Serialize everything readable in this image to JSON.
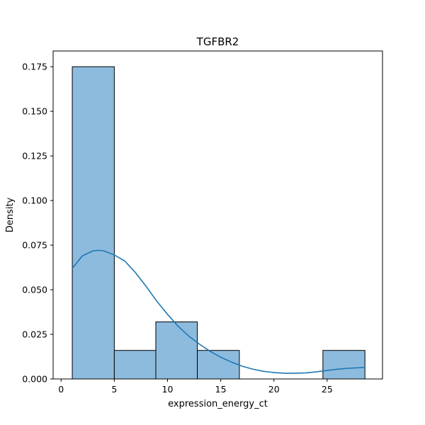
{
  "chart_data": {
    "type": "bar",
    "title": "TGFBR2",
    "xlabel": "expression_energy_ct",
    "ylabel": "Density",
    "xlim": [
      -0.75,
      30.2
    ],
    "ylim": [
      0,
      0.1838
    ],
    "xticks": [
      "0",
      "5",
      "10",
      "15",
      "20",
      "25"
    ],
    "xtick_values": [
      0,
      5,
      10,
      15,
      20,
      25
    ],
    "yticks": [
      "0.000",
      "0.025",
      "0.050",
      "0.075",
      "0.100",
      "0.125",
      "0.150",
      "0.175"
    ],
    "ytick_values": [
      0,
      0.025,
      0.05,
      0.075,
      0.1,
      0.125,
      0.15,
      0.175
    ],
    "grid": false,
    "legend": "none",
    "bins": [
      {
        "x0": 1.05,
        "x1": 5.0,
        "density": 0.175
      },
      {
        "x0": 5.0,
        "x1": 8.9,
        "density": 0.016
      },
      {
        "x0": 8.9,
        "x1": 12.8,
        "density": 0.032
      },
      {
        "x0": 12.8,
        "x1": 16.75,
        "density": 0.016
      },
      {
        "x0": 24.6,
        "x1": 28.55,
        "density": 0.016
      }
    ],
    "kde": {
      "x": [
        1.05,
        2,
        3,
        3.5,
        4,
        5,
        6,
        7,
        8,
        9,
        10,
        11,
        12,
        13,
        14,
        15,
        16,
        17,
        18,
        19,
        20,
        21,
        22,
        23,
        24,
        25,
        26,
        27,
        28,
        28.55
      ],
      "y": [
        0.062,
        0.069,
        0.0718,
        0.0721,
        0.0718,
        0.0695,
        0.066,
        0.0595,
        0.0518,
        0.0435,
        0.0362,
        0.0295,
        0.024,
        0.0195,
        0.0155,
        0.0122,
        0.0095,
        0.0072,
        0.0055,
        0.0043,
        0.0036,
        0.0032,
        0.0032,
        0.0034,
        0.004,
        0.0048,
        0.0055,
        0.006,
        0.0063,
        0.0065
      ]
    },
    "colors": {
      "bar_fill": "#8dbbdd",
      "bar_edge": "#000000",
      "kde_line": "#1f77b4"
    }
  }
}
